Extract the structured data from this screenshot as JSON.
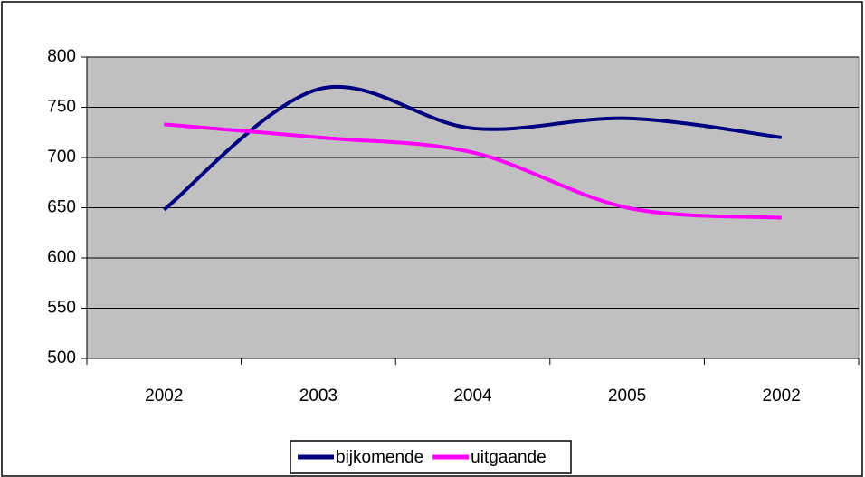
{
  "chart_data": {
    "type": "line",
    "categories": [
      "2002",
      "2003",
      "2004",
      "2005",
      "2002"
    ],
    "series": [
      {
        "name": "bijkomende",
        "color": "#000080",
        "values": [
          648,
          768,
          729,
          739,
          720
        ]
      },
      {
        "name": "uitgaande",
        "color": "#ff00ff",
        "values": [
          733,
          720,
          705,
          650,
          640
        ]
      }
    ],
    "ylim": [
      500,
      800
    ],
    "yticks": [
      500,
      550,
      600,
      650,
      700,
      750,
      800
    ],
    "grid": true,
    "plot_background": "#c0c0c0",
    "legend": "bottom",
    "smooth": true
  }
}
